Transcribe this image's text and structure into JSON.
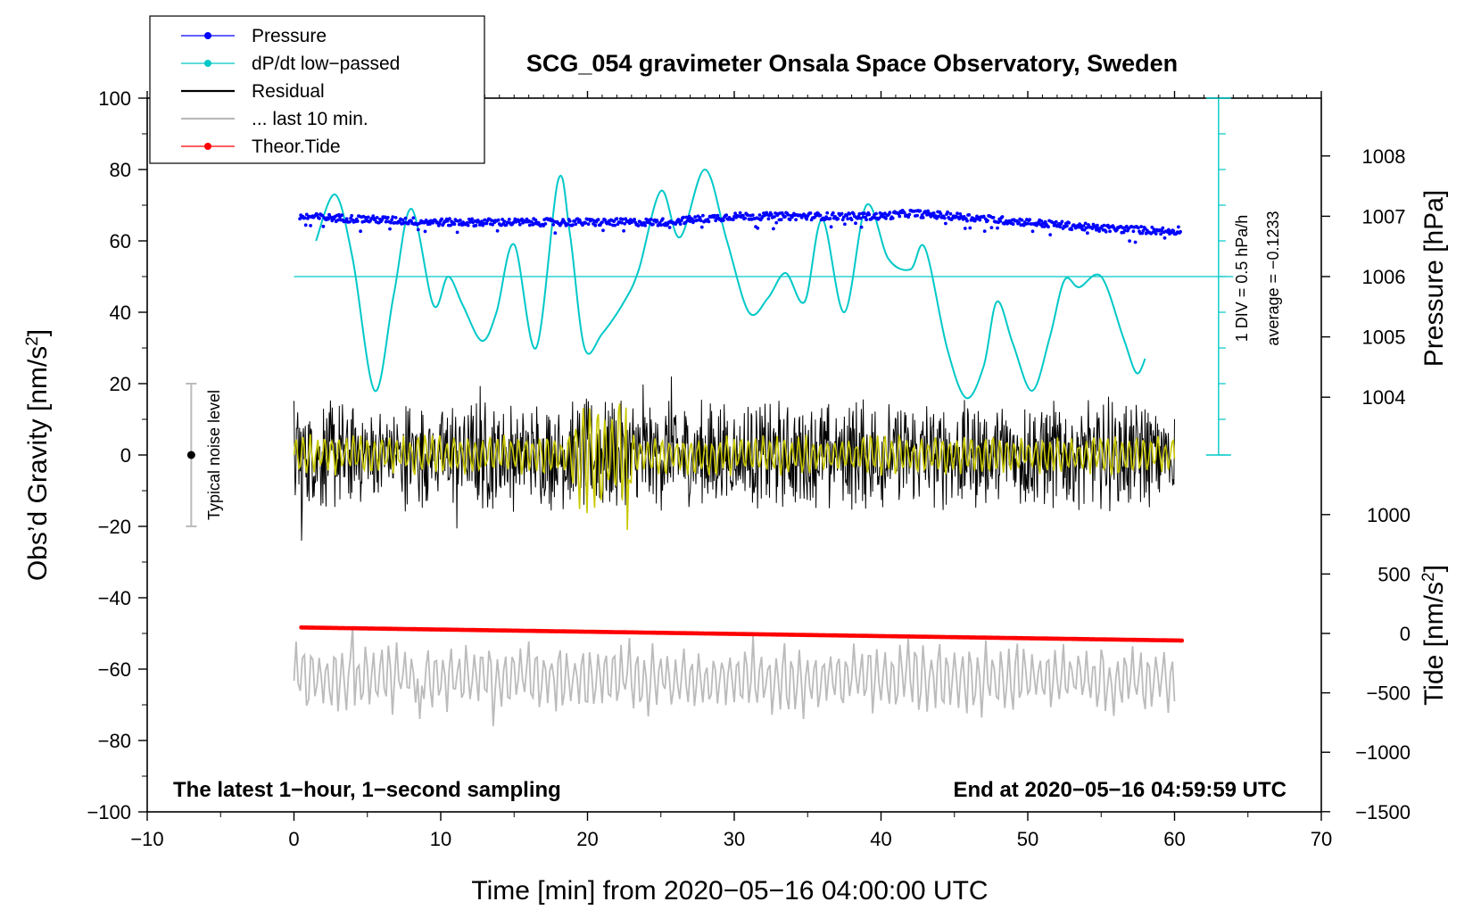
{
  "chart_data": {
    "type": "line",
    "title": "SCG_054 gravimeter Onsala Space Observatory, Sweden",
    "xlabel": "Time [min] from 2020−05−16 04:00:00 UTC",
    "ylabel_left": "Obs’d Gravity [nm/s",
    "ylabel_left_sup": "2",
    "ylabel_left_end": "]",
    "ylabel_right_pressure": "Pressure [hPa]",
    "ylabel_right_tide": "Tide [nm/s",
    "ylabel_right_tide_sup": "2",
    "ylabel_right_tide_end": "]",
    "xlim": [
      -10,
      70
    ],
    "ylim": [
      -100,
      100
    ],
    "x_ticks": [
      {
        "v": -10,
        "label": "−10"
      },
      {
        "v": 0,
        "label": "0"
      },
      {
        "v": 10,
        "label": "10"
      },
      {
        "v": 20,
        "label": "20"
      },
      {
        "v": 30,
        "label": "30"
      },
      {
        "v": 40,
        "label": "40"
      },
      {
        "v": 50,
        "label": "50"
      },
      {
        "v": 60,
        "label": "60"
      },
      {
        "v": 70,
        "label": "70"
      }
    ],
    "y_ticks": [
      {
        "v": 100,
        "label": "100"
      },
      {
        "v": 80,
        "label": "80"
      },
      {
        "v": 60,
        "label": "60"
      },
      {
        "v": 40,
        "label": "40"
      },
      {
        "v": 20,
        "label": "20"
      },
      {
        "v": 0,
        "label": "0"
      },
      {
        "v": -20,
        "label": "−20"
      },
      {
        "v": -40,
        "label": "−40"
      },
      {
        "v": -60,
        "label": "−60"
      },
      {
        "v": -80,
        "label": "−80"
      },
      {
        "v": -100,
        "label": "−100"
      }
    ],
    "pressure_axis": {
      "ticks": [
        {
          "v": 1008,
          "label": "1008"
        },
        {
          "v": 1007,
          "label": "1007"
        },
        {
          "v": 1006,
          "label": "1006"
        },
        {
          "v": 1005,
          "label": "1005"
        },
        {
          "v": 1004,
          "label": "1004"
        }
      ],
      "ref_value": 1006,
      "ref_gravity": 50,
      "gravity_per_hpa": 16.9
    },
    "tide_axis": {
      "ticks": [
        {
          "v": 1000,
          "label": "1000"
        },
        {
          "v": 500,
          "label": "500"
        },
        {
          "v": 0,
          "label": "0"
        },
        {
          "v": -500,
          "label": "−500"
        },
        {
          "v": -1000,
          "label": "−1000"
        },
        {
          "v": -1500,
          "label": "−1500"
        }
      ],
      "ref_value": 0,
      "ref_gravity": -50,
      "gravity_per_unit": 0.0333
    },
    "legend": [
      {
        "label": "Pressure",
        "color": "#0000ff",
        "marker": true
      },
      {
        "label": "dP/dt low−passed",
        "color": "#00c8c8",
        "marker": true
      },
      {
        "label": "Residual",
        "color": "#000000",
        "marker": false
      },
      {
        "label": "... last 10 min.",
        "color": "#bbbbbb",
        "marker": false
      },
      {
        "label": "Theor.Tide",
        "color": "#ff0000",
        "marker": true
      }
    ],
    "legend_placement": "top-left",
    "series": [
      {
        "name": "Pressure",
        "color": "#0000ff",
        "unit": "hPa",
        "x": [
          0,
          5,
          10,
          15,
          20,
          25,
          30,
          35,
          40,
          42,
          45,
          50,
          55,
          60,
          60.5
        ],
        "values": [
          1007.0,
          1006.95,
          1006.9,
          1006.9,
          1006.9,
          1006.9,
          1007.0,
          1007.0,
          1007.0,
          1007.05,
          1007.0,
          1006.9,
          1006.8,
          1006.75,
          1006.8
        ]
      },
      {
        "name": "dP/dt low−passed",
        "color": "#00c8c8",
        "unit": "gravity-axis",
        "x": [
          1.5,
          2.8,
          4.0,
          5.5,
          6.8,
          8.0,
          9.5,
          10.5,
          11.5,
          12.8,
          13.8,
          15.0,
          16.5,
          18.0,
          18.8,
          19.8,
          21.0,
          22.5,
          23.5,
          25.0,
          26.3,
          28.0,
          29.5,
          31.0,
          32.3,
          33.5,
          34.8,
          36.0,
          37.5,
          39.0,
          40.5,
          42.0,
          43.0,
          44.5,
          45.8,
          47.0,
          47.9,
          49.0,
          50.3,
          51.5,
          52.5,
          53.5,
          55.0,
          56.5,
          57.4,
          58.0
        ],
        "values": [
          60,
          73,
          55,
          18,
          45,
          69,
          42,
          50,
          42,
          32,
          40,
          59,
          30,
          77,
          62,
          30,
          34,
          43,
          52,
          74,
          61,
          80,
          60,
          40,
          44,
          51,
          43,
          66,
          40,
          70,
          55,
          52,
          58,
          30,
          16,
          25,
          43,
          31,
          18,
          33,
          49,
          47,
          50,
          33,
          23,
          27
        ]
      },
      {
        "name": "Residual",
        "color": "#000000",
        "x": [
          0,
          60
        ],
        "typical_range": [
          -15,
          15
        ],
        "extremes": [
          -24,
          22
        ]
      },
      {
        "name": "... last 10 min.",
        "color": "#bbbbbb",
        "x": [
          0,
          60
        ],
        "typical_range": [
          -70,
          -55
        ],
        "extremes": [
          -76,
          -48
        ]
      },
      {
        "name": "Theor.Tide",
        "color": "#ff0000",
        "unit": "nm/s^2",
        "x": [
          0.5,
          60.5
        ],
        "values": [
          50,
          -60
        ]
      }
    ],
    "noise_bar": {
      "label": "Typical noise level",
      "x": -7,
      "center": 0,
      "low": -20,
      "high": 20
    },
    "pressure_scale_label": "1 DIV = 0.5 hPa/h",
    "average_label": "average = −0.1233",
    "bottom_left_label": "The latest 1−hour, 1−second sampling",
    "bottom_right_label": "End at 2020−05−16 04:59:59 UTC"
  }
}
